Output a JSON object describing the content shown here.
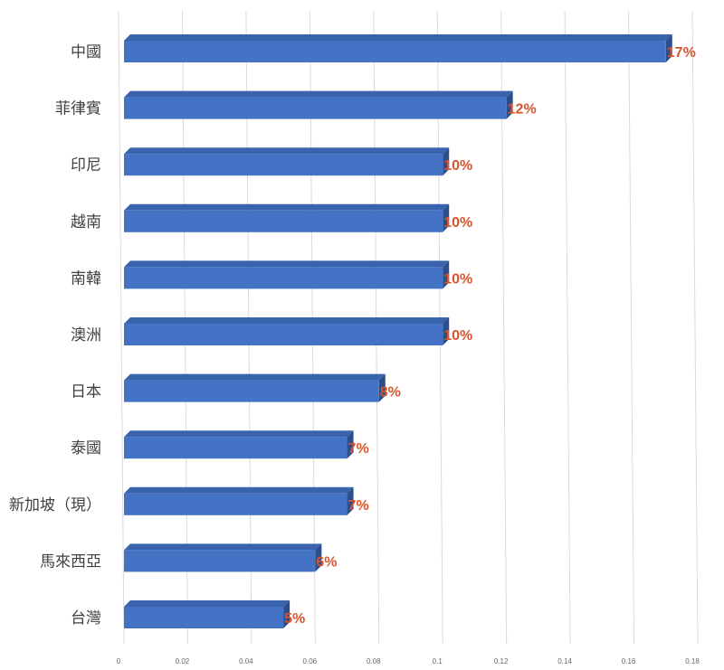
{
  "chart_data": {
    "type": "bar",
    "orientation": "horizontal",
    "categories": [
      "中國",
      "菲律賓",
      "印尼",
      "越南",
      "南韓",
      "澳洲",
      "日本",
      "泰國",
      "新加坡（現）",
      "馬來西亞",
      "台灣"
    ],
    "values": [
      0.17,
      0.12,
      0.1,
      0.1,
      0.1,
      0.1,
      0.08,
      0.07,
      0.07,
      0.06,
      0.05
    ],
    "data_labels": [
      "17%",
      "12%",
      "10%",
      "10%",
      "10%",
      "10%",
      "8%",
      "7%",
      "7%",
      "6%",
      "5%"
    ],
    "x_ticks": [
      "0",
      "0.02",
      "0.04",
      "0.06",
      "0.08",
      "0.1",
      "0.12",
      "0.14",
      "0.16",
      "0.18"
    ],
    "xlim": [
      0,
      0.18
    ],
    "grid": "vertical",
    "legend": "none",
    "colors": {
      "bar_front": "#4472C4",
      "bar_top": "#3A63AD",
      "bar_side": "#2C4E8A",
      "label": "#D9542B",
      "grid": "#D9D9D9"
    }
  }
}
